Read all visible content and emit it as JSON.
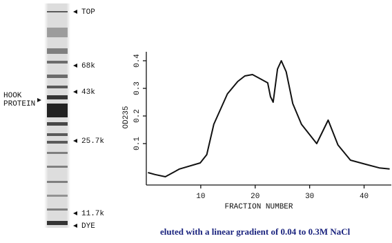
{
  "gel": {
    "markers": [
      "TOP",
      "68k",
      "43k",
      "25.7k",
      "11.7k",
      "DYE"
    ],
    "hook_label": [
      "HOOK",
      "PROTEIN"
    ]
  },
  "caption": "eluted with a linear gradient of 0.04 to 0.3M NaCl",
  "chart_data": {
    "type": "line",
    "xlabel": "FRACTION NUMBER",
    "ylabel": "OD235",
    "x": [
      0.3,
      1.6,
      3.5,
      6.1,
      9.9,
      11.1,
      12.4,
      14.9,
      16.8,
      18.1,
      19.5,
      22.3,
      22.8,
      23.3,
      24.1,
      24.8,
      25.7,
      26.9,
      28.5,
      31.3,
      33.4,
      35.2,
      37.5,
      40.3,
      42.8,
      44.7
    ],
    "values": [
      -0.005,
      -0.012,
      -0.02,
      0.008,
      0.03,
      0.06,
      0.17,
      0.28,
      0.325,
      0.345,
      0.35,
      0.32,
      0.27,
      0.25,
      0.37,
      0.4,
      0.36,
      0.245,
      0.17,
      0.1,
      0.185,
      0.095,
      0.04,
      0.025,
      0.012,
      0.008
    ],
    "color": "#111111",
    "xlim": [
      0,
      45
    ],
    "xticks": [
      10,
      20,
      30,
      40
    ],
    "ylim": [
      -0.05,
      0.42
    ],
    "yticks": [
      0.1,
      0.2,
      0.3,
      0.4
    ]
  }
}
